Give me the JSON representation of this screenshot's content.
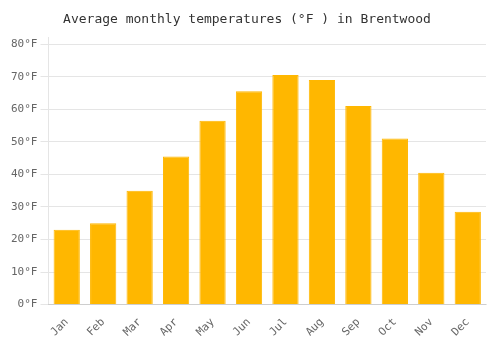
{
  "chart_data": {
    "type": "bar",
    "title": "Average monthly temperatures (°F ) in Brentwood",
    "categories": [
      "Jan",
      "Feb",
      "Mar",
      "Apr",
      "May",
      "Jun",
      "Jul",
      "Aug",
      "Sep",
      "Oct",
      "Nov",
      "Dec"
    ],
    "values": [
      23,
      25,
      35,
      45.5,
      56.5,
      65.5,
      70.5,
      69,
      61,
      51,
      40.5,
      28.5
    ],
    "color": "#FFB700",
    "ylim": [
      0,
      82
    ],
    "yticks": [
      {
        "value": 0,
        "label": "0°F"
      },
      {
        "value": 10,
        "label": "10°F"
      },
      {
        "value": 20,
        "label": "20°F"
      },
      {
        "value": 30,
        "label": "30°F"
      },
      {
        "value": 40,
        "label": "40°F"
      },
      {
        "value": 50,
        "label": "50°F"
      },
      {
        "value": 60,
        "label": "60°F"
      },
      {
        "value": 70,
        "label": "70°F"
      },
      {
        "value": 80,
        "label": "80°F"
      }
    ],
    "grid": true
  }
}
